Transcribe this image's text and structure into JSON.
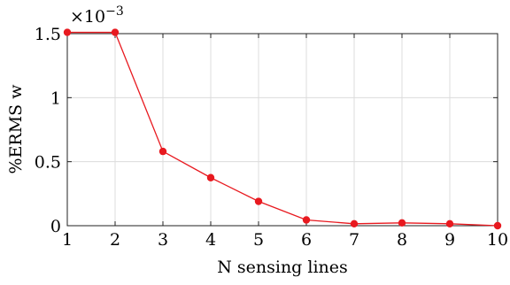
{
  "chart_data": {
    "type": "line",
    "xlabel": "N sensing lines",
    "ylabel": "%ERMS w",
    "exponent_label": "×10",
    "exponent_power": "−3",
    "xlim": [
      1,
      10
    ],
    "ylim": [
      0,
      1.5
    ],
    "x_ticks": [
      "1",
      "2",
      "3",
      "4",
      "5",
      "6",
      "7",
      "8",
      "9",
      "10"
    ],
    "y_ticks": [
      "0",
      "0.5",
      "1",
      "1.5"
    ],
    "y_tick_values": [
      0,
      0.5,
      1,
      1.5
    ],
    "grid": true,
    "series": [
      {
        "x": [
          1,
          2,
          3,
          4,
          5,
          6,
          7,
          8,
          9,
          10
        ],
        "values": [
          1.51,
          1.51,
          0.58,
          0.375,
          0.19,
          0.045,
          0.015,
          0.022,
          0.015,
          0.0
        ],
        "color": "#e8191f"
      }
    ]
  }
}
